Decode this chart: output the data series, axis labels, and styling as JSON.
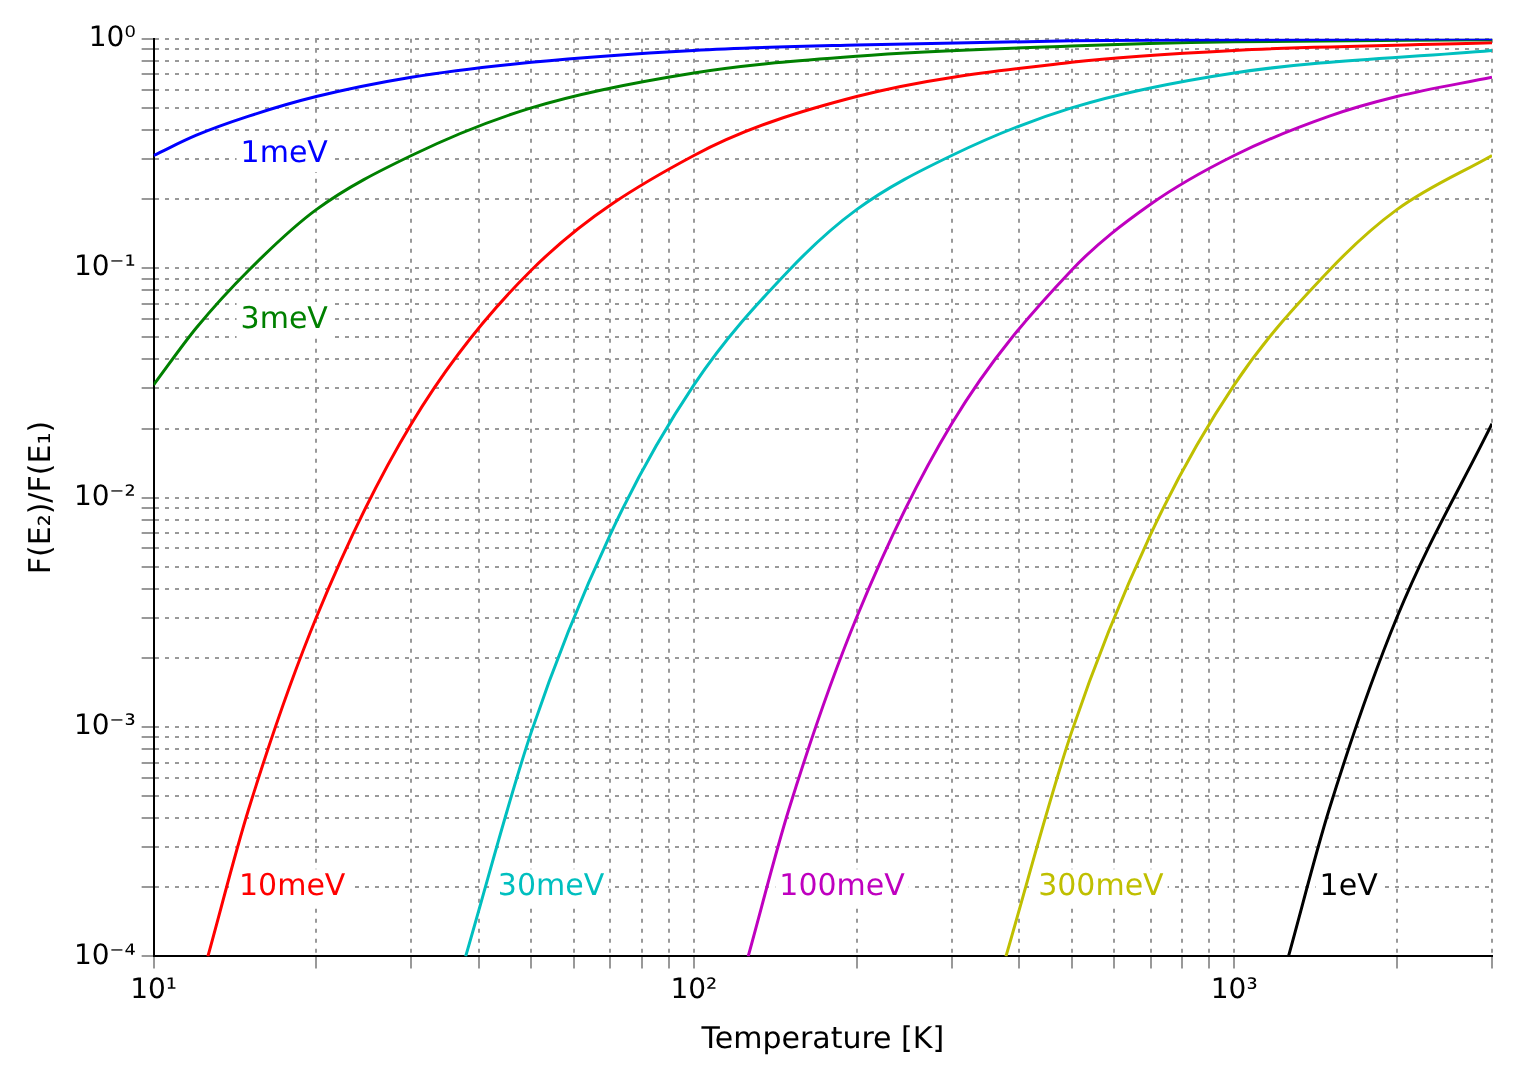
{
  "chart_data": {
    "type": "line",
    "xlabel": "Temperature [K]",
    "ylabel": "F(E₂)/F(E₁)",
    "log": "xy",
    "grid": true,
    "legend": false,
    "marker": "none",
    "line_style": "solid",
    "xlim": [
      10,
      3000
    ],
    "ylim": [
      0.0001,
      1
    ],
    "xticks": [
      {
        "value": 10,
        "label": "10¹"
      },
      {
        "value": 20,
        "label": null
      },
      {
        "value": 30,
        "label": null
      },
      {
        "value": 40,
        "label": null
      },
      {
        "value": 50,
        "label": null
      },
      {
        "value": 60,
        "label": null
      },
      {
        "value": 70,
        "label": null
      },
      {
        "value": 80,
        "label": null
      },
      {
        "value": 90,
        "label": null
      },
      {
        "value": 100,
        "label": "10²"
      },
      {
        "value": 200,
        "label": null
      },
      {
        "value": 300,
        "label": null
      },
      {
        "value": 400,
        "label": null
      },
      {
        "value": 500,
        "label": null
      },
      {
        "value": 600,
        "label": null
      },
      {
        "value": 700,
        "label": null
      },
      {
        "value": 800,
        "label": null
      },
      {
        "value": 900,
        "label": null
      },
      {
        "value": 1000,
        "label": "10³"
      },
      {
        "value": 2000,
        "label": null
      },
      {
        "value": 3000,
        "label": null
      }
    ],
    "yticks": [
      {
        "value": 0.0001,
        "label": "10⁻⁴"
      },
      {
        "value": 0.0002,
        "label": null
      },
      {
        "value": 0.0003,
        "label": null
      },
      {
        "value": 0.0004,
        "label": null
      },
      {
        "value": 0.0005,
        "label": null
      },
      {
        "value": 0.0006,
        "label": null
      },
      {
        "value": 0.0007,
        "label": null
      },
      {
        "value": 0.0008,
        "label": null
      },
      {
        "value": 0.0009,
        "label": null
      },
      {
        "value": 0.001,
        "label": "10⁻³"
      },
      {
        "value": 0.002,
        "label": null
      },
      {
        "value": 0.003,
        "label": null
      },
      {
        "value": 0.004,
        "label": null
      },
      {
        "value": 0.005,
        "label": null
      },
      {
        "value": 0.006,
        "label": null
      },
      {
        "value": 0.007,
        "label": null
      },
      {
        "value": 0.008,
        "label": null
      },
      {
        "value": 0.009,
        "label": null
      },
      {
        "value": 0.01,
        "label": "10⁻²"
      },
      {
        "value": 0.02,
        "label": null
      },
      {
        "value": 0.03,
        "label": null
      },
      {
        "value": 0.04,
        "label": null
      },
      {
        "value": 0.05,
        "label": null
      },
      {
        "value": 0.06,
        "label": null
      },
      {
        "value": 0.07,
        "label": null
      },
      {
        "value": 0.08,
        "label": null
      },
      {
        "value": 0.09,
        "label": null
      },
      {
        "value": 0.1,
        "label": "10⁻¹"
      },
      {
        "value": 0.2,
        "label": null
      },
      {
        "value": 0.3,
        "label": null
      },
      {
        "value": 0.4,
        "label": null
      },
      {
        "value": 0.5,
        "label": null
      },
      {
        "value": 0.6,
        "label": null
      },
      {
        "value": 0.7,
        "label": null
      },
      {
        "value": 0.8,
        "label": null
      },
      {
        "value": 0.9,
        "label": null
      },
      {
        "value": 1,
        "label": "10⁰"
      }
    ],
    "series": [
      {
        "name": "1meV",
        "color": "#0000ff",
        "x": [
          10,
          12,
          15,
          20,
          30,
          50,
          100,
          200,
          500,
          1000,
          3000
        ],
        "values": [
          0.31,
          0.38,
          0.46,
          0.56,
          0.68,
          0.79,
          0.89,
          0.94,
          0.98,
          0.99,
          1.0
        ]
      },
      {
        "name": "3meV",
        "color": "#008000",
        "x": [
          10,
          12,
          15,
          20,
          30,
          50,
          100,
          200,
          500,
          1000,
          3000
        ],
        "values": [
          0.031,
          0.055,
          0.098,
          0.18,
          0.31,
          0.5,
          0.71,
          0.84,
          0.93,
          0.97,
          0.99
        ]
      },
      {
        "name": "10meV",
        "color": "#ff0000",
        "x": [
          12.6,
          15,
          20,
          30,
          50,
          100,
          200,
          500,
          1000,
          3000
        ],
        "values": [
          0.0001,
          0.00044,
          0.003,
          0.021,
          0.098,
          0.31,
          0.56,
          0.79,
          0.89,
          0.96
        ]
      },
      {
        "name": "30meV",
        "color": "#00bfbf",
        "x": [
          37.8,
          50,
          70,
          100,
          150,
          200,
          300,
          500,
          1000,
          3000
        ],
        "values": [
          0.0001,
          0.00095,
          0.0069,
          0.031,
          0.098,
          0.18,
          0.31,
          0.5,
          0.71,
          0.89
        ]
      },
      {
        "name": "100meV",
        "color": "#bf00bf",
        "x": [
          126,
          150,
          200,
          300,
          500,
          700,
          1000,
          1500,
          2000,
          3000
        ],
        "values": [
          0.0001,
          0.00044,
          0.003,
          0.021,
          0.098,
          0.19,
          0.31,
          0.46,
          0.56,
          0.68
        ]
      },
      {
        "name": "300meV",
        "color": "#bfbf00",
        "x": [
          378,
          500,
          700,
          1000,
          1500,
          2000,
          3000
        ],
        "values": [
          0.0001,
          0.00095,
          0.0069,
          0.031,
          0.098,
          0.18,
          0.31
        ]
      },
      {
        "name": "1eV",
        "color": "#000000",
        "x": [
          1260,
          1500,
          2000,
          3000
        ],
        "values": [
          0.0001,
          0.00044,
          0.003,
          0.021
        ]
      }
    ]
  }
}
